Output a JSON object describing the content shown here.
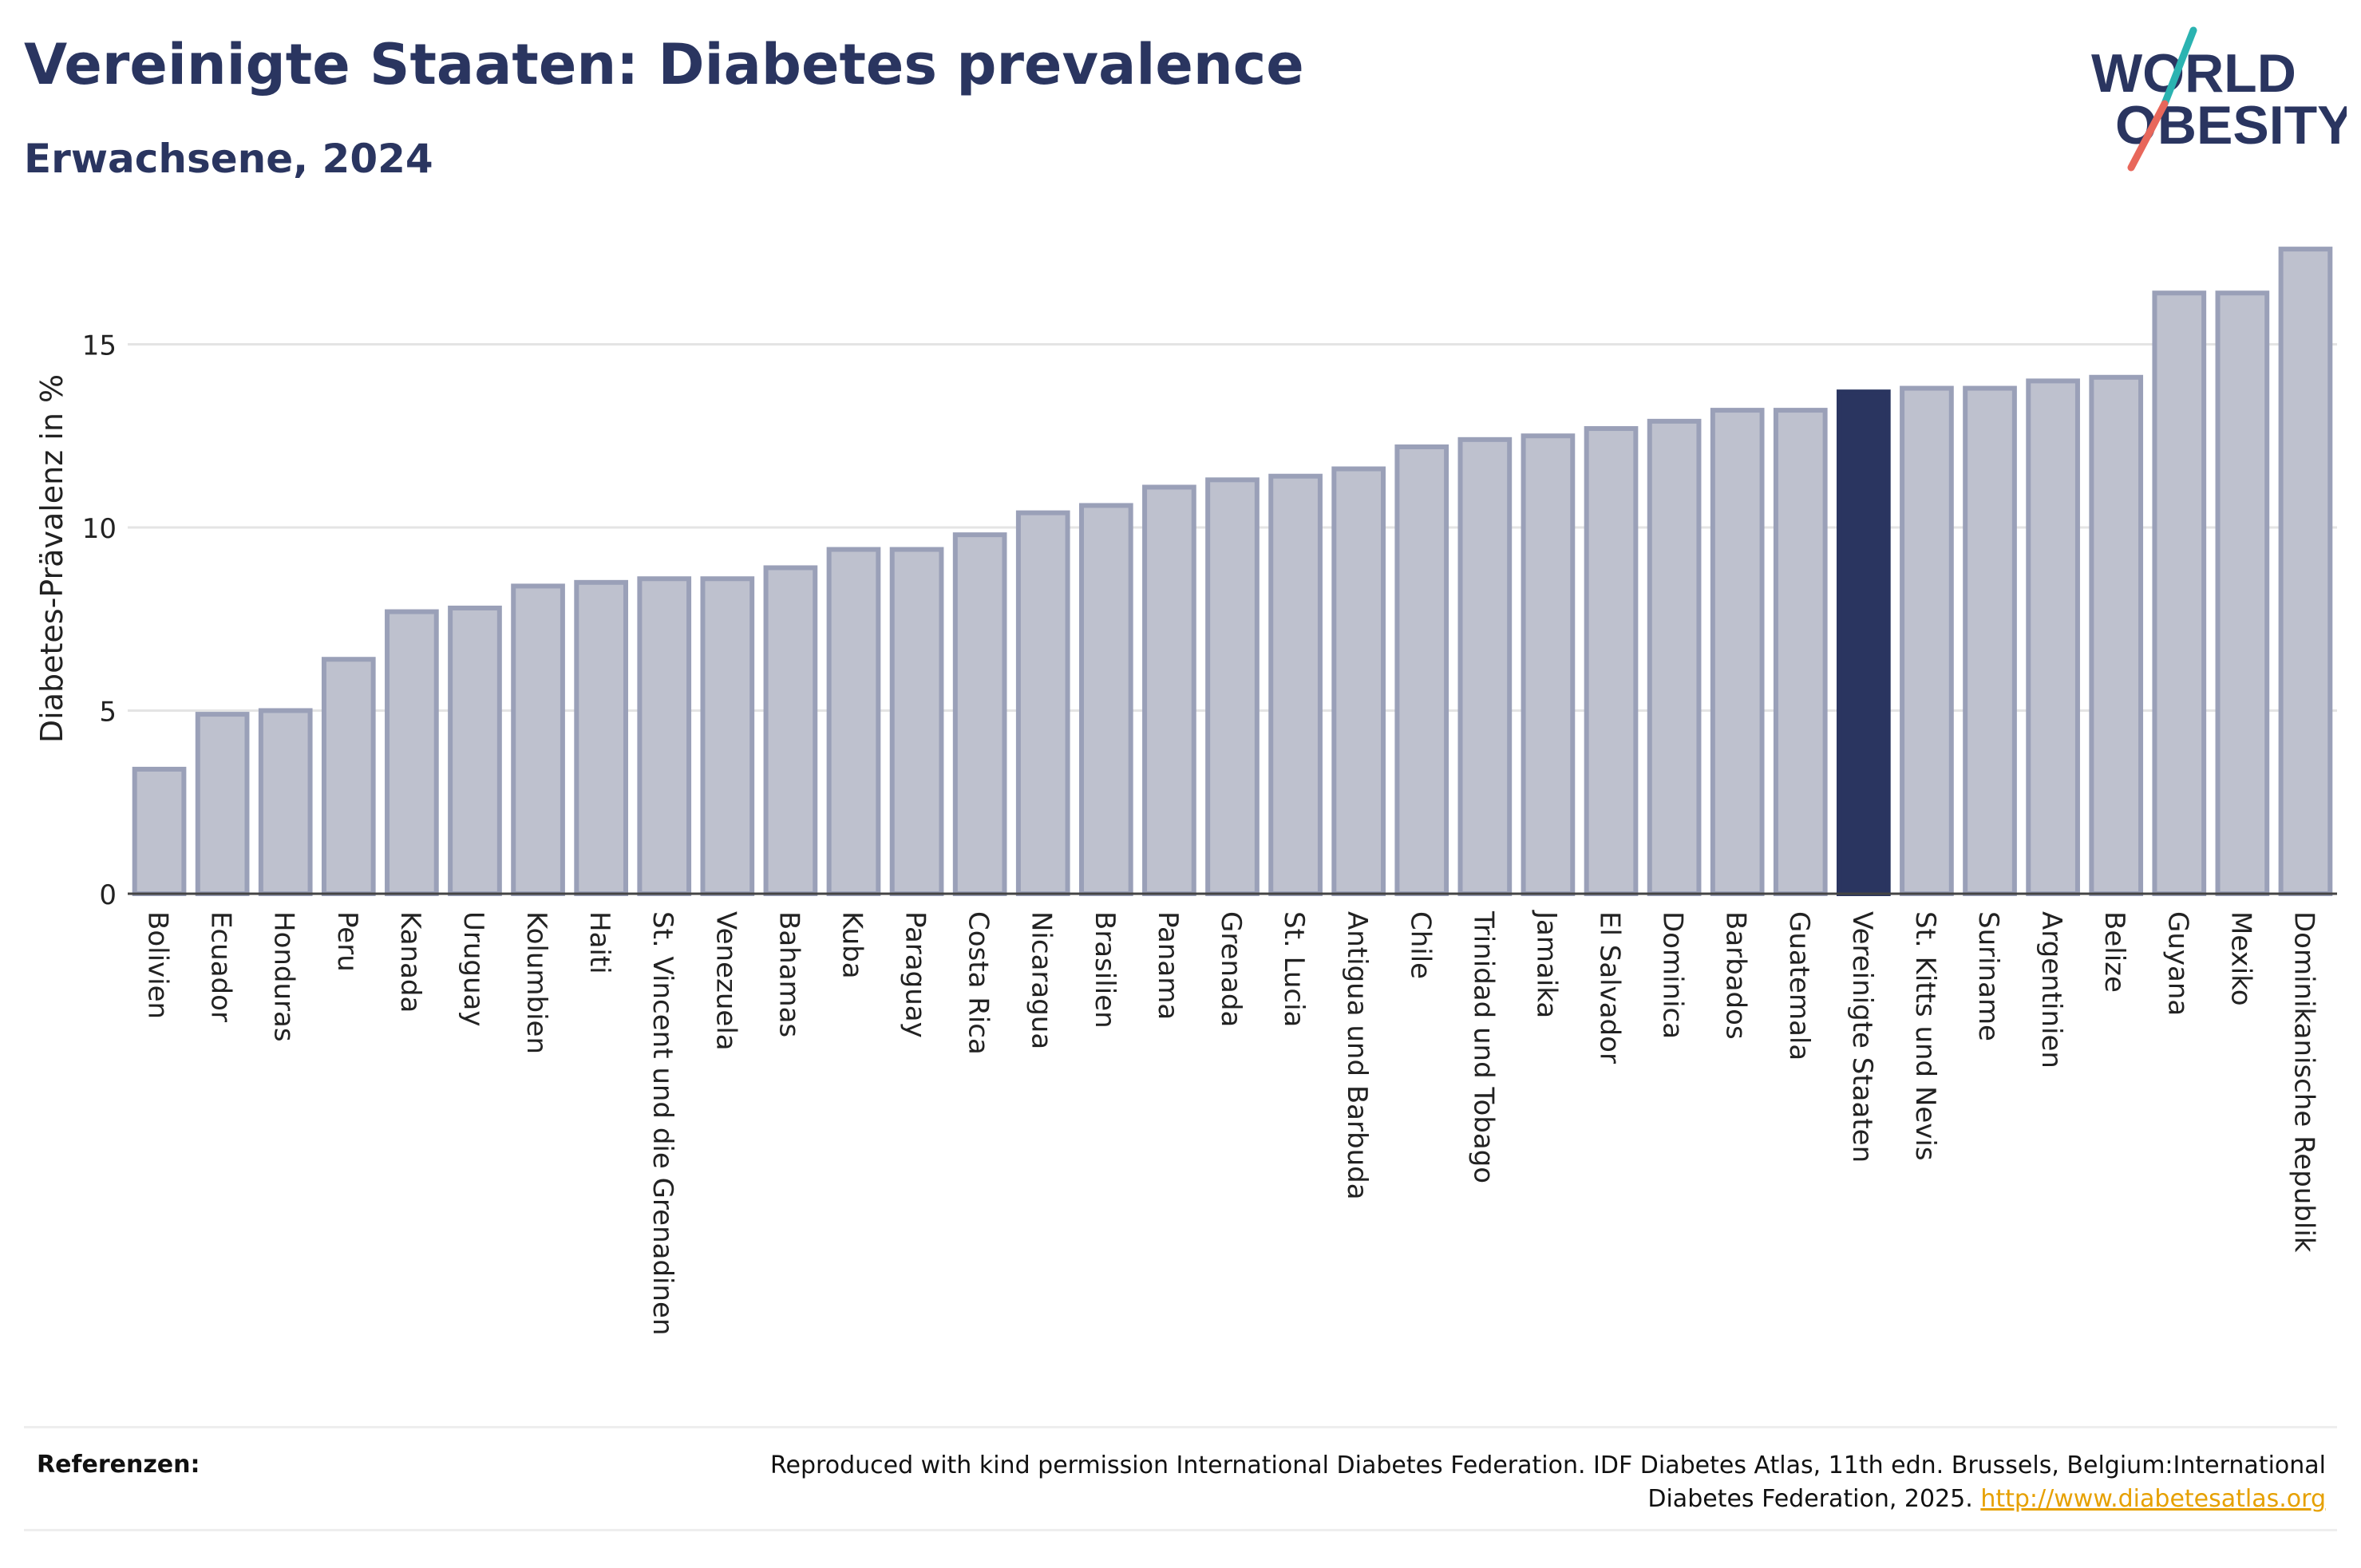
{
  "title": "Vereinigte Staaten: Diabetes prevalence",
  "subtitle": "Erwachsene, 2024",
  "logo": {
    "line1": "WORLD",
    "line2": "OBESITY",
    "icon": "world-obesity-logo"
  },
  "colors": {
    "bar": "#bec1ce",
    "bar_border": "#9aa0b8",
    "highlight": "#2a3560",
    "text": "#2a3560"
  },
  "chart_data": {
    "type": "bar",
    "ylabel": "Diabetes-Prävalenz in %",
    "ylim": [
      0,
      18.3
    ],
    "yticks": [
      0,
      5,
      10,
      15
    ],
    "grid": true,
    "highlight": "Vereinigte Staaten",
    "categories": [
      "Bolivien",
      "Ecuador",
      "Honduras",
      "Peru",
      "Kanada",
      "Uruguay",
      "Kolumbien",
      "Haiti",
      "St. Vincent und die Grenadinen",
      "Venezuela",
      "Bahamas",
      "Kuba",
      "Paraguay",
      "Costa Rica",
      "Nicaragua",
      "Brasilien",
      "Panama",
      "Grenada",
      "St. Lucia",
      "Antigua und Barbuda",
      "Chile",
      "Trinidad und Tobago",
      "Jamaika",
      "El Salvador",
      "Dominica",
      "Barbados",
      "Guatemala",
      "Vereinigte Staaten",
      "St. Kitts und Nevis",
      "Suriname",
      "Argentinien",
      "Belize",
      "Guyana",
      "Mexiko",
      "Dominikanische Republik"
    ],
    "values": [
      3.4,
      4.9,
      5.0,
      6.4,
      7.7,
      7.8,
      8.4,
      8.5,
      8.6,
      8.6,
      8.9,
      9.4,
      9.4,
      9.8,
      10.4,
      10.6,
      11.1,
      11.3,
      11.4,
      11.6,
      12.2,
      12.4,
      12.5,
      12.7,
      12.9,
      13.2,
      13.2,
      13.7,
      13.8,
      13.8,
      14.0,
      14.1,
      16.4,
      16.4,
      17.6
    ]
  },
  "references": {
    "label": "Referenzen:",
    "text": "Reproduced with kind permission International Diabetes Federation. IDF Diabetes Atlas, 11th edn. Brussels, Belgium:International Diabetes Federation, 2025.",
    "link": "http://www.diabetesatlas.org"
  }
}
